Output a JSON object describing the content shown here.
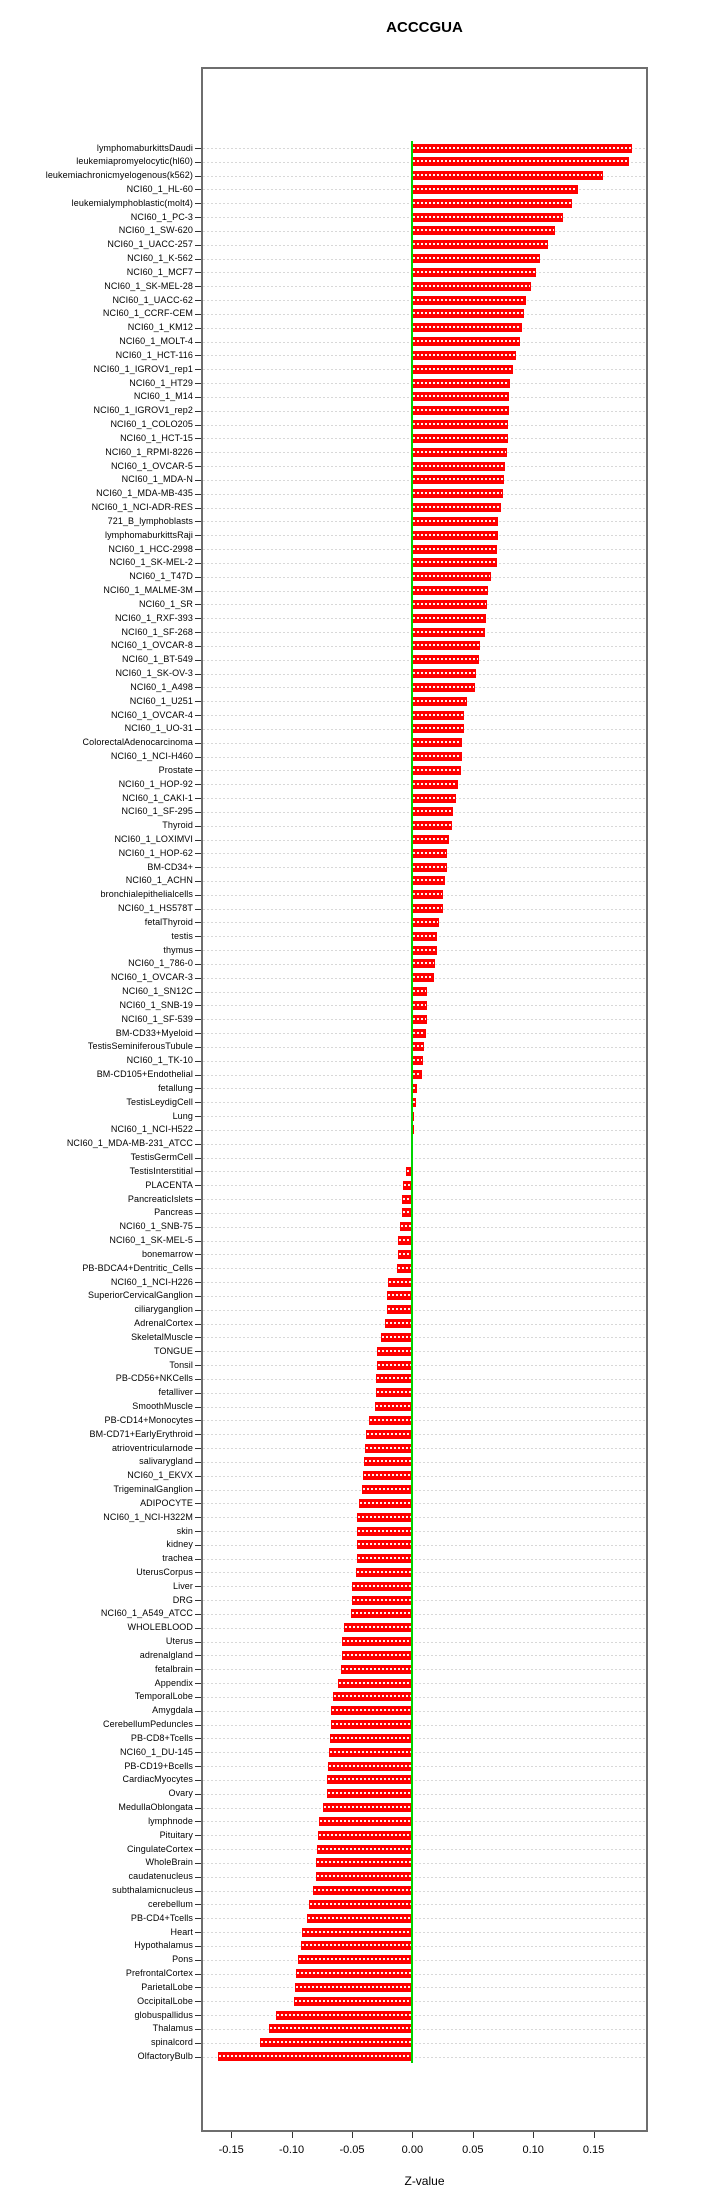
{
  "title": "ACCCGUA",
  "chart_data": {
    "type": "bar",
    "orientation": "horizontal",
    "title": "ACCCGUA",
    "xlabel": "Z-value",
    "xlim": [
      -0.175,
      0.195
    ],
    "grid": true,
    "bar_color": "#ff0000",
    "zero_line_color": "#00d400",
    "grid_color": "#d8d8d8",
    "box_color": "#6e6e6e",
    "x_ticks": [
      -0.15,
      -0.1,
      -0.05,
      0.0,
      0.05,
      0.1,
      0.15
    ],
    "x_tick_labels": [
      "-0.15",
      "-0.10",
      "-0.05",
      "0.00",
      "0.05",
      "0.10",
      "0.15"
    ],
    "categories": [
      "lymphomaburkittsDaudi",
      "leukemiapromyelocytic(hl60)",
      "leukemiachronicmyelogenous(k562)",
      "NCI60_1_HL-60",
      "leukemialymphoblastic(molt4)",
      "NCI60_1_PC-3",
      "NCI60_1_SW-620",
      "NCI60_1_UACC-257",
      "NCI60_1_K-562",
      "NCI60_1_MCF7",
      "NCI60_1_SK-MEL-28",
      "NCI60_1_UACC-62",
      "NCI60_1_CCRF-CEM",
      "NCI60_1_KM12",
      "NCI60_1_MOLT-4",
      "NCI60_1_HCT-116",
      "NCI60_1_IGROV1_rep1",
      "NCI60_1_HT29",
      "NCI60_1_M14",
      "NCI60_1_IGROV1_rep2",
      "NCI60_1_COLO205",
      "NCI60_1_HCT-15",
      "NCI60_1_RPMI-8226",
      "NCI60_1_OVCAR-5",
      "NCI60_1_MDA-N",
      "NCI60_1_MDA-MB-435",
      "NCI60_1_NCI-ADR-RES",
      "721_B_lymphoblasts",
      "lymphomaburkittsRaji",
      "NCI60_1_HCC-2998",
      "NCI60_1_SK-MEL-2",
      "NCI60_1_T47D",
      "NCI60_1_MALME-3M",
      "NCI60_1_SR",
      "NCI60_1_RXF-393",
      "NCI60_1_SF-268",
      "NCI60_1_OVCAR-8",
      "NCI60_1_BT-549",
      "NCI60_1_SK-OV-3",
      "NCI60_1_A498",
      "NCI60_1_U251",
      "NCI60_1_OVCAR-4",
      "NCI60_1_UO-31",
      "ColorectalAdenocarcinoma",
      "NCI60_1_NCI-H460",
      "Prostate",
      "NCI60_1_HOP-92",
      "NCI60_1_CAKI-1",
      "NCI60_1_SF-295",
      "Thyroid",
      "NCI60_1_LOXIMVI",
      "NCI60_1_HOP-62",
      "BM-CD34+",
      "NCI60_1_ACHN",
      "bronchialepithelialcells",
      "NCI60_1_HS578T",
      "fetalThyroid",
      "testis",
      "thymus",
      "NCI60_1_786-0",
      "NCI60_1_OVCAR-3",
      "NCI60_1_SN12C",
      "NCI60_1_SNB-19",
      "NCI60_1_SF-539",
      "BM-CD33+Myeloid",
      "TestisSeminiferousTubule",
      "NCI60_1_TK-10",
      "BM-CD105+Endothelial",
      "fetallung",
      "TestisLeydigCell",
      "Lung",
      "NCI60_1_NCI-H522",
      "NCI60_1_MDA-MB-231_ATCC",
      "TestisGermCell",
      "TestisInterstitial",
      "PLACENTA",
      "PancreaticIslets",
      "Pancreas",
      "NCI60_1_SNB-75",
      "NCI60_1_SK-MEL-5",
      "bonemarrow",
      "PB-BDCA4+Dentritic_Cells",
      "NCI60_1_NCI-H226",
      "SuperiorCervicalGanglion",
      "ciliaryganglion",
      "AdrenalCortex",
      "SkeletalMuscle",
      "TONGUE",
      "Tonsil",
      "PB-CD56+NKCells",
      "fetalliver",
      "SmoothMuscle",
      "PB-CD14+Monocytes",
      "BM-CD71+EarlyErythroid",
      "atrioventricularnode",
      "salivarygland",
      "NCI60_1_EKVX",
      "TrigeminalGanglion",
      "ADIPOCYTE",
      "NCI60_1_NCI-H322M",
      "skin",
      "kidney",
      "trachea",
      "UterusCorpus",
      "Liver",
      "DRG",
      "NCI60_1_A549_ATCC",
      "WHOLEBLOOD",
      "Uterus",
      "adrenalgland",
      "fetalbrain",
      "Appendix",
      "TemporalLobe",
      "Amygdala",
      "CerebellumPeduncles",
      "PB-CD8+Tcells",
      "NCI60_1_DU-145",
      "PB-CD19+Bcells",
      "CardiacMyocytes",
      "Ovary",
      "MedullaOblongata",
      "lymphnode",
      "Pituitary",
      "CingulateCortex",
      "WholeBrain",
      "caudatenucleus",
      "subthalamicnucleus",
      "cerebellum",
      "PB-CD4+Tcells",
      "Heart",
      "Hypothalamus",
      "Pons",
      "PrefrontalCortex",
      "ParietalLobe",
      "OccipitalLobe",
      "globuspallidus",
      "Thalamus",
      "spinalcord",
      "OlfactoryBulb"
    ],
    "values": [
      0.182,
      0.179,
      0.158,
      0.137,
      0.132,
      0.125,
      0.118,
      0.112,
      0.106,
      0.102,
      0.098,
      0.094,
      0.092,
      0.091,
      0.089,
      0.086,
      0.083,
      0.081,
      0.08,
      0.08,
      0.079,
      0.079,
      0.078,
      0.077,
      0.076,
      0.075,
      0.073,
      0.071,
      0.071,
      0.07,
      0.07,
      0.065,
      0.063,
      0.062,
      0.061,
      0.06,
      0.056,
      0.055,
      0.053,
      0.052,
      0.045,
      0.043,
      0.043,
      0.041,
      0.041,
      0.04,
      0.038,
      0.036,
      0.034,
      0.033,
      0.03,
      0.029,
      0.029,
      0.027,
      0.025,
      0.025,
      0.022,
      0.02,
      0.02,
      0.019,
      0.018,
      0.012,
      0.012,
      0.012,
      0.011,
      0.01,
      0.009,
      0.008,
      0.004,
      0.003,
      0.001,
      0.001,
      0.0,
      -0.001,
      -0.005,
      -0.008,
      -0.009,
      -0.009,
      -0.01,
      -0.012,
      -0.012,
      -0.013,
      -0.02,
      -0.021,
      -0.021,
      -0.023,
      -0.026,
      -0.029,
      -0.029,
      -0.03,
      -0.03,
      -0.031,
      -0.036,
      -0.038,
      -0.039,
      -0.04,
      -0.041,
      -0.042,
      -0.044,
      -0.046,
      -0.046,
      -0.046,
      -0.046,
      -0.047,
      -0.05,
      -0.05,
      -0.051,
      -0.057,
      -0.058,
      -0.058,
      -0.059,
      -0.062,
      -0.066,
      -0.067,
      -0.067,
      -0.068,
      -0.069,
      -0.07,
      -0.071,
      -0.071,
      -0.074,
      -0.077,
      -0.078,
      -0.079,
      -0.08,
      -0.08,
      -0.082,
      -0.086,
      -0.087,
      -0.091,
      -0.092,
      -0.095,
      -0.096,
      -0.097,
      -0.098,
      -0.113,
      -0.119,
      -0.126,
      -0.161
    ]
  }
}
